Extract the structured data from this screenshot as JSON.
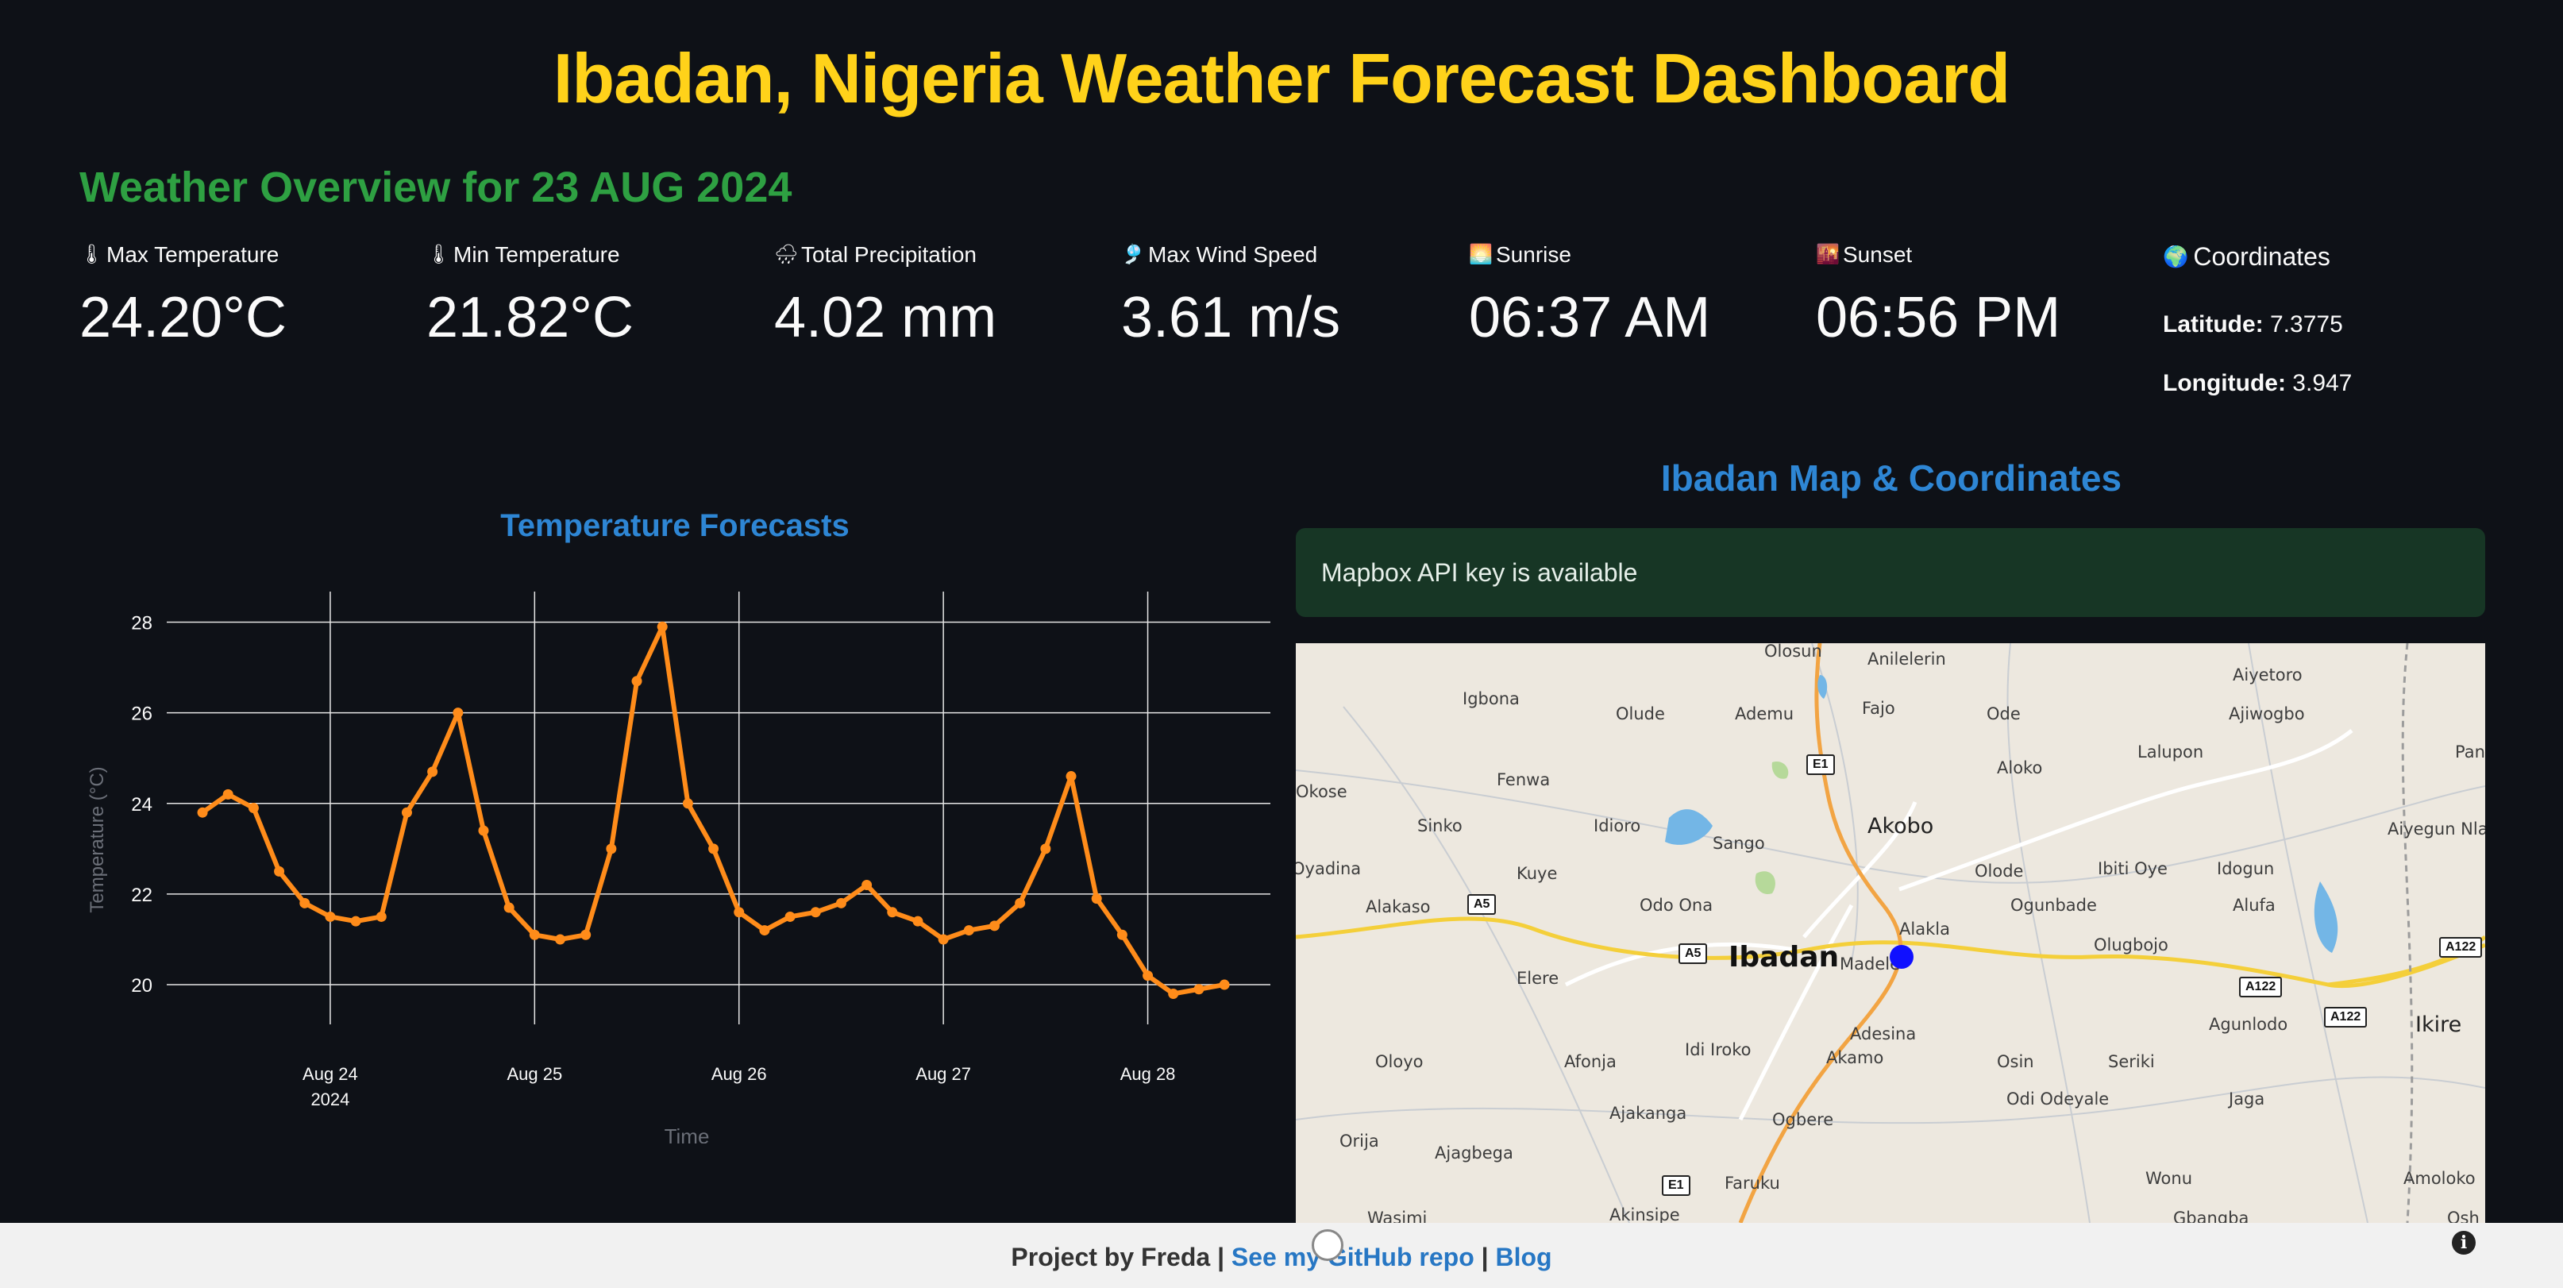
{
  "header": {
    "title": "Ibadan, Nigeria Weather Forecast Dashboard"
  },
  "overview": {
    "heading": "Weather Overview for 23 AUG 2024"
  },
  "metrics": [
    {
      "icon": "thermometer-icon",
      "glyph": "🌡",
      "label": "Max Temperature",
      "value": "24.20°C"
    },
    {
      "icon": "thermometer-icon",
      "glyph": "🌡",
      "label": "Min Temperature",
      "value": "21.82°C"
    },
    {
      "icon": "rain-cloud-icon",
      "glyph": "🌧",
      "label": "Total Precipitation",
      "value": "4.02 mm"
    },
    {
      "icon": "wind-flag-icon",
      "glyph": "🎐",
      "label": "Max Wind Speed",
      "value": "3.61 m/s"
    },
    {
      "icon": "sunrise-icon",
      "glyph": "🌅",
      "label": "Sunrise",
      "value": "06:37 AM"
    },
    {
      "icon": "sunset-icon",
      "glyph": "🌇",
      "label": "Sunset",
      "value": "06:56 PM"
    }
  ],
  "coordinates": {
    "glyph": "🌍",
    "heading": "Coordinates",
    "lat_label": "Latitude:",
    "lat_value": "7.3775",
    "lon_label": "Longitude:",
    "lon_value": "3.947"
  },
  "chart_data": {
    "type": "line",
    "title": "Temperature Forecasts",
    "xlabel": "Time",
    "ylabel": "Temperature (°C)",
    "ylim": [
      19.3,
      28.5
    ],
    "yticks": [
      20,
      22,
      24,
      26,
      28
    ],
    "xticks": [
      {
        "label": "Aug 24",
        "sublabel": "2024",
        "x": 24
      },
      {
        "label": "Aug 25",
        "sublabel": "",
        "x": 25
      },
      {
        "label": "Aug 26",
        "sublabel": "",
        "x": 26
      },
      {
        "label": "Aug 27",
        "sublabel": "",
        "x": 27
      },
      {
        "label": "Aug 28",
        "sublabel": "",
        "x": 28
      }
    ],
    "xlim": [
      23.2,
      28.6
    ],
    "grid": true,
    "line_color": "#ff8c1a",
    "series": [
      {
        "x": [
          23.375,
          23.5,
          23.625,
          23.75,
          23.875,
          24.0,
          24.125,
          24.25,
          24.375,
          24.5,
          24.625,
          24.75,
          24.875,
          25.0,
          25.125,
          25.25,
          25.375,
          25.5,
          25.625,
          25.75,
          25.875,
          26.0,
          26.125,
          26.25,
          26.375,
          26.5,
          26.625,
          26.75,
          26.875,
          27.0,
          27.125,
          27.25,
          27.375,
          27.5,
          27.625,
          27.75,
          27.875,
          28.0,
          28.125,
          28.25,
          28.375
        ],
        "y": [
          23.8,
          24.2,
          23.9,
          22.5,
          21.8,
          21.5,
          21.4,
          21.5,
          23.8,
          24.7,
          26.0,
          23.4,
          21.7,
          21.1,
          21.0,
          21.1,
          23.0,
          26.7,
          27.9,
          24.0,
          23.0,
          21.6,
          21.2,
          21.5,
          21.6,
          21.8,
          22.2,
          21.6,
          21.4,
          21.0,
          21.2,
          21.3,
          21.8,
          23.0,
          24.6,
          21.9,
          21.1,
          20.2,
          19.8,
          19.9,
          20.0
        ]
      }
    ]
  },
  "map_section": {
    "title": "Ibadan Map & Coordinates",
    "alert": "Mapbox API key is available",
    "places": {
      "ibadan": "Ibadan",
      "akobo": "Akobo",
      "madele": "Madele",
      "olosun": "Olosun",
      "anilelerin": "Anilelerin",
      "aiyetoro": "Aiyetoro",
      "igbona": "Igbona",
      "olude": "Olude",
      "ademu": "Ademu",
      "fajo": "Fajo",
      "ode": "Ode",
      "ajiwogbo": "Ajiwogbo",
      "pan": "Pan",
      "fenwa": "Fenwa",
      "aloko": "Aloko",
      "lalupon": "Lalupon",
      "okose": "Okose",
      "sinko": "Sinko",
      "idioro": "Idioro",
      "sango": "Sango",
      "ibiti_oye": "Ibiti Oye",
      "idogun": "Idogun",
      "aiyegun": "Aiyegun Nla",
      "oyadina": "Oyadina",
      "kuye": "Kuye",
      "olode": "Olode",
      "alakaso": "Alakaso",
      "odo_ona": "Odo Ona",
      "ogunbade": "Ogunbade",
      "alufa": "Alufa",
      "alakla": "Alakla",
      "olugbojo": "Olugbojo",
      "elere": "Elere",
      "adesina": "Adesina",
      "agunlodo": "Agunlodo",
      "ikire": "Ikire",
      "idi_iroko": "Idi Iroko",
      "oloyo": "Oloyo",
      "afonja": "Afonja",
      "akamo": "Akamo",
      "osin": "Osin",
      "seriki": "Seriki",
      "odi_odeyale": "Odi Odeyale",
      "jaga": "Jaga",
      "ajakanga": "Ajakanga",
      "ogbere": "Ogbere",
      "orija": "Orija",
      "ajagbega": "Ajagbega",
      "faruku": "Faruku",
      "wonu": "Wonu",
      "amoloko": "Amoloko",
      "wasimi": "Wasimi",
      "akinsipe": "Akinsipe",
      "gbangba": "Gbangba",
      "osh": "Osh"
    },
    "roads": {
      "e1": "E1",
      "a5": "A5",
      "a122": "A122"
    }
  },
  "footer": {
    "prefix": "Project by Freda",
    "sep1": " | ",
    "github": "See my GitHub repo",
    "sep2": " | ",
    "blog": "Blog",
    "info": "i"
  }
}
